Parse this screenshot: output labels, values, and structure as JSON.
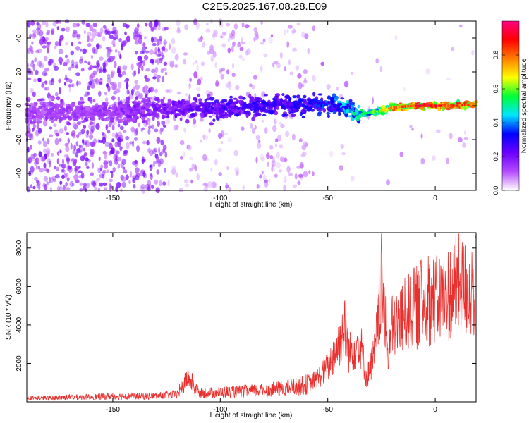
{
  "title": "C2E5.2025.167.08.28.E09",
  "colors": {
    "snr_line": "#e8302e",
    "axis": "#000000"
  },
  "chart_data": [
    {
      "type": "heatmap",
      "xlabel": "Height of straight line (km)",
      "ylabel": "Frequency (Hz)",
      "xlim": [
        -190,
        19
      ],
      "ylim": [
        -50,
        50
      ],
      "x_ticks": [
        -150,
        -100,
        -50,
        0
      ],
      "y_ticks": [
        -40,
        -20,
        0,
        20,
        40
      ],
      "colorbar": {
        "label": "Normalized spectral amplitude",
        "range": [
          0,
          1
        ],
        "ticks": [
          0.0,
          0.2,
          0.4,
          0.6,
          0.8
        ],
        "colormap": [
          "#ffffff",
          "#b44bff",
          "#6a00ff",
          "#0000ff",
          "#00e5ff",
          "#00ff33",
          "#ffff00",
          "#ff7f00",
          "#ff0000",
          "#ff007f"
        ]
      },
      "ridge": {
        "x": [
          -190,
          -150,
          -120,
          -100,
          -80,
          -60,
          -50,
          -40,
          -35,
          -30,
          -25,
          -20,
          -10,
          0,
          10,
          19
        ],
        "y": [
          -4,
          -4,
          -1,
          -2,
          0,
          1,
          1,
          -2,
          -5,
          -4,
          -3,
          -1,
          0,
          0,
          0,
          1
        ],
        "peak_amplitude": [
          0.15,
          0.18,
          0.25,
          0.3,
          0.32,
          0.35,
          0.4,
          0.5,
          0.55,
          0.6,
          0.7,
          0.85,
          0.95,
          1.0,
          0.9,
          0.85
        ]
      }
    },
    {
      "type": "line",
      "xlabel": "Height of straight line (km)",
      "ylabel": "SNR (10 * v/v)",
      "xlim": [
        -190,
        19
      ],
      "ylim": [
        0,
        8800
      ],
      "x_ticks": [
        -150,
        -100,
        -50,
        0
      ],
      "y_ticks": [
        2000,
        4000,
        6000,
        8000
      ],
      "grid": false,
      "series": [
        {
          "x": [
            -190,
            -180,
            -170,
            -160,
            -150,
            -140,
            -130,
            -120,
            -115,
            -110,
            -100,
            -90,
            -80,
            -70,
            -60,
            -55,
            -50,
            -45,
            -42,
            -40,
            -35,
            -32,
            -28,
            -25,
            -22,
            -20,
            -15,
            -10,
            -5,
            0,
            5,
            10,
            15,
            19
          ],
          "y": [
            200,
            200,
            250,
            250,
            300,
            300,
            300,
            400,
            1300,
            450,
            500,
            550,
            600,
            700,
            900,
            1200,
            1800,
            3000,
            3800,
            2500,
            3200,
            1200,
            2600,
            6200,
            2400,
            3900,
            4400,
            4800,
            5200,
            5300,
            5500,
            6100,
            5800,
            6000
          ]
        }
      ]
    }
  ]
}
